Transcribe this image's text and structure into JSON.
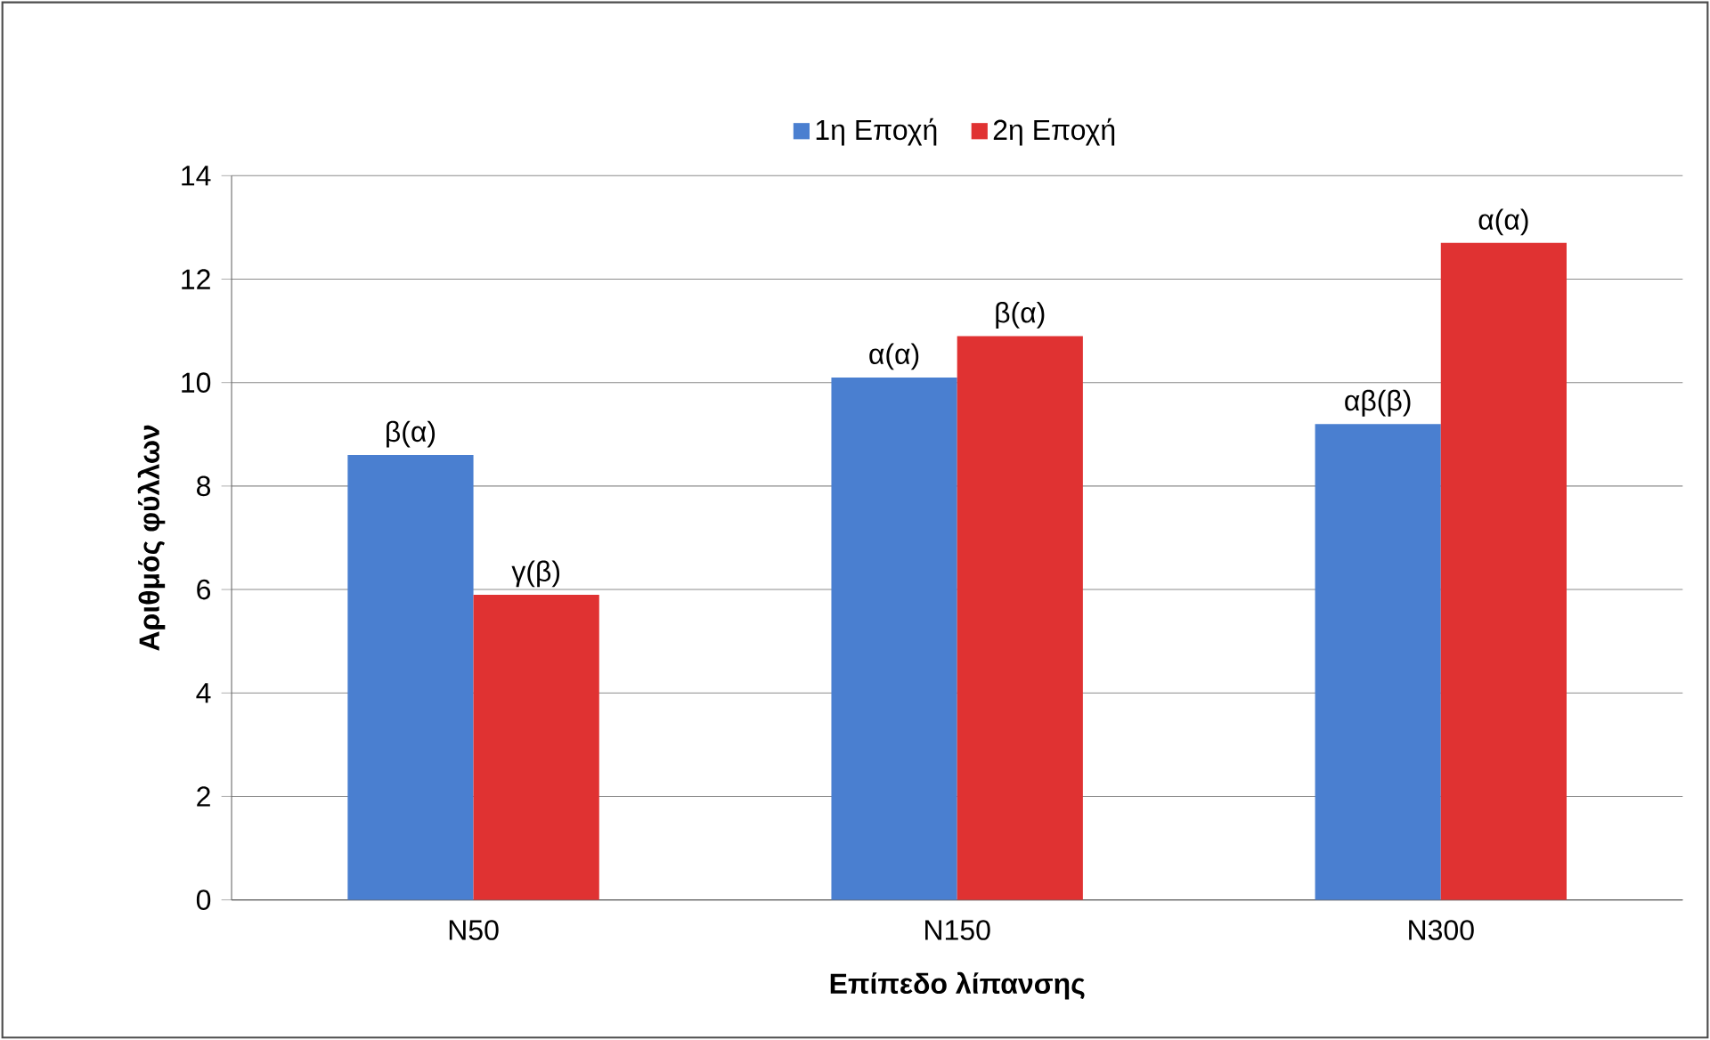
{
  "chart_data": {
    "type": "bar",
    "xlabel": "Επίπεδο λίπανσης",
    "ylabel": "Αριθμός φύλλων",
    "categories": [
      "N50",
      "N150",
      "N300"
    ],
    "series": [
      {
        "name": "1η Εποχή",
        "color": "#4a7fd0",
        "values": [
          8.6,
          10.1,
          9.2
        ],
        "value_labels": [
          "β(α)",
          "α(α)",
          "αβ(β)"
        ]
      },
      {
        "name": "2η Εποχή",
        "color": "#e03232",
        "values": [
          5.9,
          10.9,
          12.7
        ],
        "value_labels": [
          "γ(β)",
          "β(α)",
          "α(α)"
        ]
      }
    ],
    "ylim": [
      0,
      14
    ],
    "yticks": [
      0,
      2,
      4,
      6,
      8,
      10,
      12,
      14
    ],
    "grid": "y",
    "legend": "top"
  }
}
